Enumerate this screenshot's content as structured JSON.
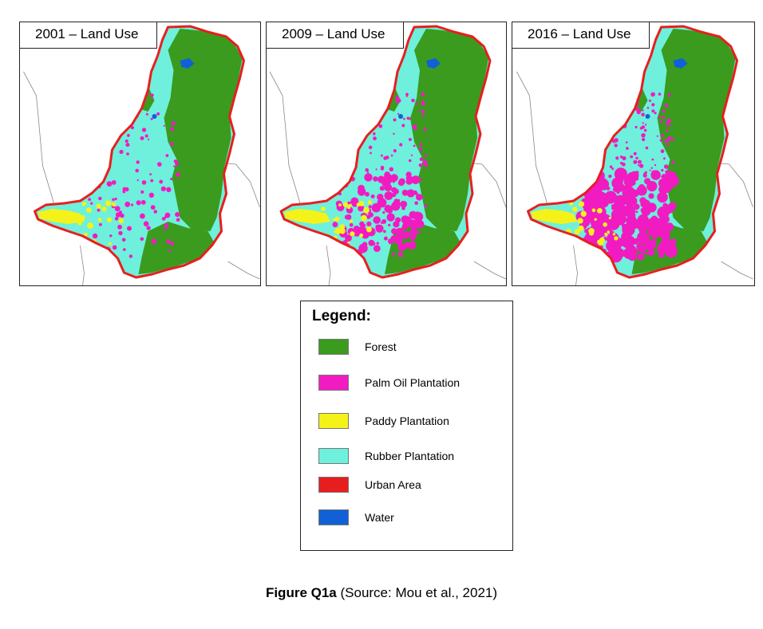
{
  "maps": [
    {
      "title": "2001 – Land Use",
      "palm_level": "low"
    },
    {
      "title": "2009 – Land Use",
      "palm_level": "medium"
    },
    {
      "title": "2016 – Land Use",
      "palm_level": "high"
    }
  ],
  "legend": {
    "title": "Legend:",
    "items": [
      {
        "label": "Forest",
        "color": "#3a9b1e"
      },
      {
        "label": "Palm Oil Plantation",
        "color": "#f11bc2"
      },
      {
        "label": "Paddy Plantation",
        "color": "#f5f21a"
      },
      {
        "label": "Rubber Plantation",
        "color": "#6ef0dc"
      },
      {
        "label": "Urban Area",
        "color": "#e81e1e"
      },
      {
        "label": "Water",
        "color": "#1160d8"
      }
    ]
  },
  "caption": {
    "bold": "Figure Q1a",
    "rest": " (Source: Mou et al., 2021)"
  }
}
